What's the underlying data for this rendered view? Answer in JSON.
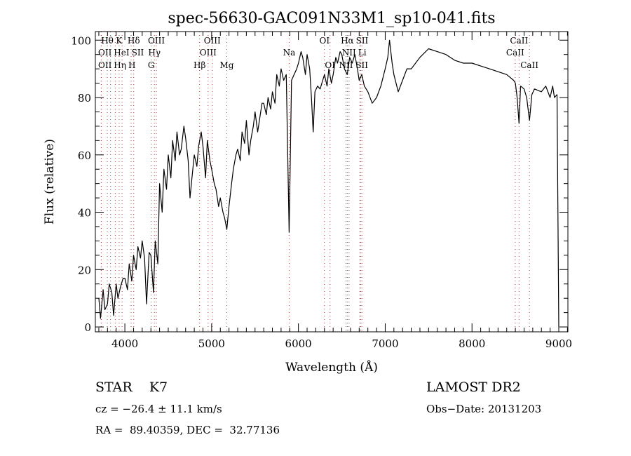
{
  "chart_data": {
    "type": "line",
    "title": "spec-56630-GAC091N33M1_sp10-041.fits",
    "xlabel": "Wavelength (Å)",
    "ylabel": "Flux (relative)",
    "xlim": [
      3660,
      9105
    ],
    "ylim": [
      -1.7,
      103
    ],
    "xticks": [
      4000,
      5000,
      6000,
      7000,
      8000,
      9000
    ],
    "yticks": [
      0,
      20,
      40,
      60,
      80,
      100
    ],
    "grid": false,
    "series": [
      {
        "name": "flux",
        "x": [
          3700,
          3720,
          3750,
          3770,
          3800,
          3820,
          3850,
          3870,
          3900,
          3920,
          3950,
          3980,
          4000,
          4030,
          4050,
          4080,
          4100,
          4130,
          4150,
          4180,
          4200,
          4227,
          4250,
          4280,
          4300,
          4330,
          4350,
          4380,
          4400,
          4430,
          4450,
          4480,
          4500,
          4530,
          4550,
          4580,
          4600,
          4630,
          4650,
          4680,
          4700,
          4730,
          4751,
          4780,
          4800,
          4830,
          4850,
          4880,
          4900,
          4930,
          4950,
          4980,
          5000,
          5030,
          5050,
          5080,
          5100,
          5130,
          5150,
          5175,
          5200,
          5230,
          5250,
          5280,
          5300,
          5330,
          5350,
          5380,
          5400,
          5430,
          5450,
          5480,
          5500,
          5530,
          5550,
          5580,
          5600,
          5630,
          5650,
          5680,
          5700,
          5730,
          5750,
          5780,
          5800,
          5830,
          5860,
          5893,
          5920,
          5950,
          5980,
          6000,
          6030,
          6050,
          6080,
          6100,
          6130,
          6150,
          6170,
          6190,
          6220,
          6250,
          6280,
          6300,
          6330,
          6350,
          6380,
          6400,
          6430,
          6450,
          6480,
          6500,
          6530,
          6563,
          6590,
          6620,
          6650,
          6680,
          6700,
          6730,
          6760,
          6800,
          6850,
          6900,
          6950,
          7000,
          7030,
          7050,
          7080,
          7100,
          7150,
          7200,
          7250,
          7300,
          7400,
          7500,
          7600,
          7700,
          7800,
          7900,
          8000,
          8100,
          8200,
          8300,
          8400,
          8480,
          8500,
          8520,
          8542,
          8560,
          8600,
          8630,
          8662,
          8690,
          8720,
          8800,
          8850,
          8900,
          8930,
          8950,
          8980,
          9000
        ],
        "y": [
          10,
          3,
          13,
          6,
          8,
          15,
          12,
          4,
          15,
          10,
          14,
          17,
          17,
          13,
          22,
          16,
          25,
          20,
          28,
          24,
          30,
          24,
          8,
          26,
          25,
          12,
          30,
          22,
          50,
          40,
          55,
          48,
          60,
          52,
          65,
          58,
          68,
          60,
          62,
          70,
          66,
          58,
          45,
          54,
          60,
          56,
          63,
          68,
          63,
          52,
          65,
          58,
          55,
          50,
          48,
          42,
          45,
          40,
          38,
          34,
          42,
          50,
          55,
          60,
          62,
          58,
          68,
          64,
          72,
          60,
          65,
          70,
          75,
          68,
          72,
          78,
          78,
          74,
          80,
          76,
          82,
          78,
          88,
          84,
          90,
          86,
          88,
          33,
          86,
          88,
          90,
          92,
          96,
          94,
          88,
          95,
          90,
          80,
          68,
          82,
          84,
          83,
          86,
          88,
          84,
          90,
          85,
          88,
          94,
          92,
          96,
          95,
          90,
          88,
          94,
          92,
          95,
          90,
          86,
          88,
          84,
          82,
          78,
          80,
          84,
          90,
          94,
          100,
          92,
          88,
          82,
          86,
          90,
          90,
          94,
          97,
          96,
          95,
          93,
          92,
          92,
          91,
          90,
          89,
          88,
          86,
          85,
          80,
          71,
          84,
          83,
          80,
          72,
          81,
          83,
          82,
          84,
          80,
          84,
          80,
          81,
          0
        ]
      }
    ],
    "line_markers": [
      {
        "label": "Hθ",
        "wavelength": 3798,
        "row": 1
      },
      {
        "label": "K",
        "wavelength": 3934,
        "row": 1
      },
      {
        "label": "Hδ",
        "wavelength": 4102,
        "row": 1
      },
      {
        "label": "OIII",
        "wavelength": 4363,
        "row": 1
      },
      {
        "label": "OIII",
        "wavelength": 5007,
        "row": 1
      },
      {
        "label": "OI",
        "wavelength": 6300,
        "row": 1
      },
      {
        "label": "Hα",
        "wavelength": 6563,
        "row": 1
      },
      {
        "label": "SII",
        "wavelength": 6716,
        "row": 1
      },
      {
        "label": "CaII",
        "wavelength": 8542,
        "row": 1
      },
      {
        "label": "OII",
        "wavelength": 3727,
        "row": 2
      },
      {
        "label": "HeI",
        "wavelength": 3889,
        "row": 2
      },
      {
        "label": "SII",
        "wavelength": 4072,
        "row": 2
      },
      {
        "label": "Hγ",
        "wavelength": 4340,
        "row": 2
      },
      {
        "label": "OIII",
        "wavelength": 4959,
        "row": 2
      },
      {
        "label": "Na",
        "wavelength": 5893,
        "row": 2
      },
      {
        "label": "NII",
        "wavelength": 6583,
        "row": 2
      },
      {
        "label": "Li",
        "wavelength": 6708,
        "row": 2
      },
      {
        "label": "CaII",
        "wavelength": 8498,
        "row": 2
      },
      {
        "label": "OII",
        "wavelength": 3729,
        "row": 3
      },
      {
        "label": "Hη",
        "wavelength": 3835,
        "row": 3
      },
      {
        "label": "H",
        "wavelength": 3968,
        "row": 3
      },
      {
        "label": "G",
        "wavelength": 4304,
        "row": 3
      },
      {
        "label": "Hβ",
        "wavelength": 4861,
        "row": 3
      },
      {
        "label": "Mg",
        "wavelength": 5175,
        "row": 3
      },
      {
        "label": "OI",
        "wavelength": 6364,
        "row": 3
      },
      {
        "label": "NII",
        "wavelength": 6548,
        "row": 3
      },
      {
        "label": "SII",
        "wavelength": 6731,
        "row": 3
      },
      {
        "label": "CaII",
        "wavelength": 8662,
        "row": 3
      }
    ]
  },
  "info": {
    "object_class": "STAR    K7",
    "survey": "LAMOST DR2",
    "cz": "cz = −26.4 ± 11.1 km/s",
    "obs_date": "Obs−Date: 20131203",
    "coords": "RA =  89.40359, DEC =  32.77136"
  }
}
